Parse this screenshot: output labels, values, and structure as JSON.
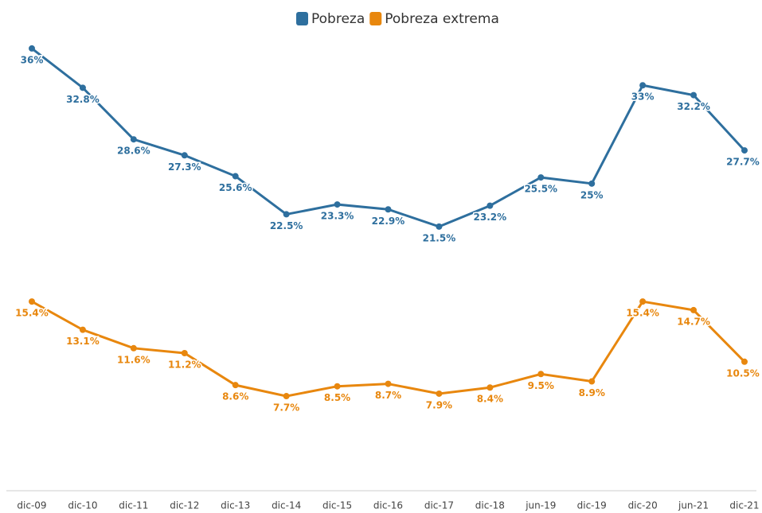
{
  "chart_data": {
    "type": "line",
    "categories": [
      "dic-09",
      "dic-10",
      "dic-11",
      "dic-12",
      "dic-13",
      "dic-14",
      "dic-15",
      "dic-16",
      "dic-17",
      "dic-18",
      "jun-19",
      "dic-19",
      "dic-20",
      "jun-21",
      "dic-21"
    ],
    "series": [
      {
        "name": "Pobreza",
        "color": "#2e6f9e",
        "values": [
          36,
          32.8,
          28.6,
          27.3,
          25.6,
          22.5,
          23.3,
          22.9,
          21.5,
          23.2,
          25.5,
          25,
          33,
          32.2,
          27.7
        ],
        "value_labels": [
          "36%",
          "32.8%",
          "28.6%",
          "27.3%",
          "25.6%",
          "22.5%",
          "23.3%",
          "22.9%",
          "21.5%",
          "23.2%",
          "25.5%",
          "25%",
          "33%",
          "32.2%",
          "27.7%"
        ]
      },
      {
        "name": "Pobreza extrema",
        "color": "#e8870e",
        "values": [
          15.4,
          13.1,
          11.6,
          11.2,
          8.6,
          7.7,
          8.5,
          8.7,
          7.9,
          8.4,
          9.5,
          8.9,
          15.4,
          14.7,
          10.5
        ],
        "value_labels": [
          "15.4%",
          "13.1%",
          "11.6%",
          "11.2%",
          "8.6%",
          "7.7%",
          "8.5%",
          "8.7%",
          "7.9%",
          "8.4%",
          "9.5%",
          "8.9%",
          "15.4%",
          "14.7%",
          "10.5%"
        ]
      }
    ],
    "ylim": [
      0,
      38
    ],
    "legend": "top"
  }
}
